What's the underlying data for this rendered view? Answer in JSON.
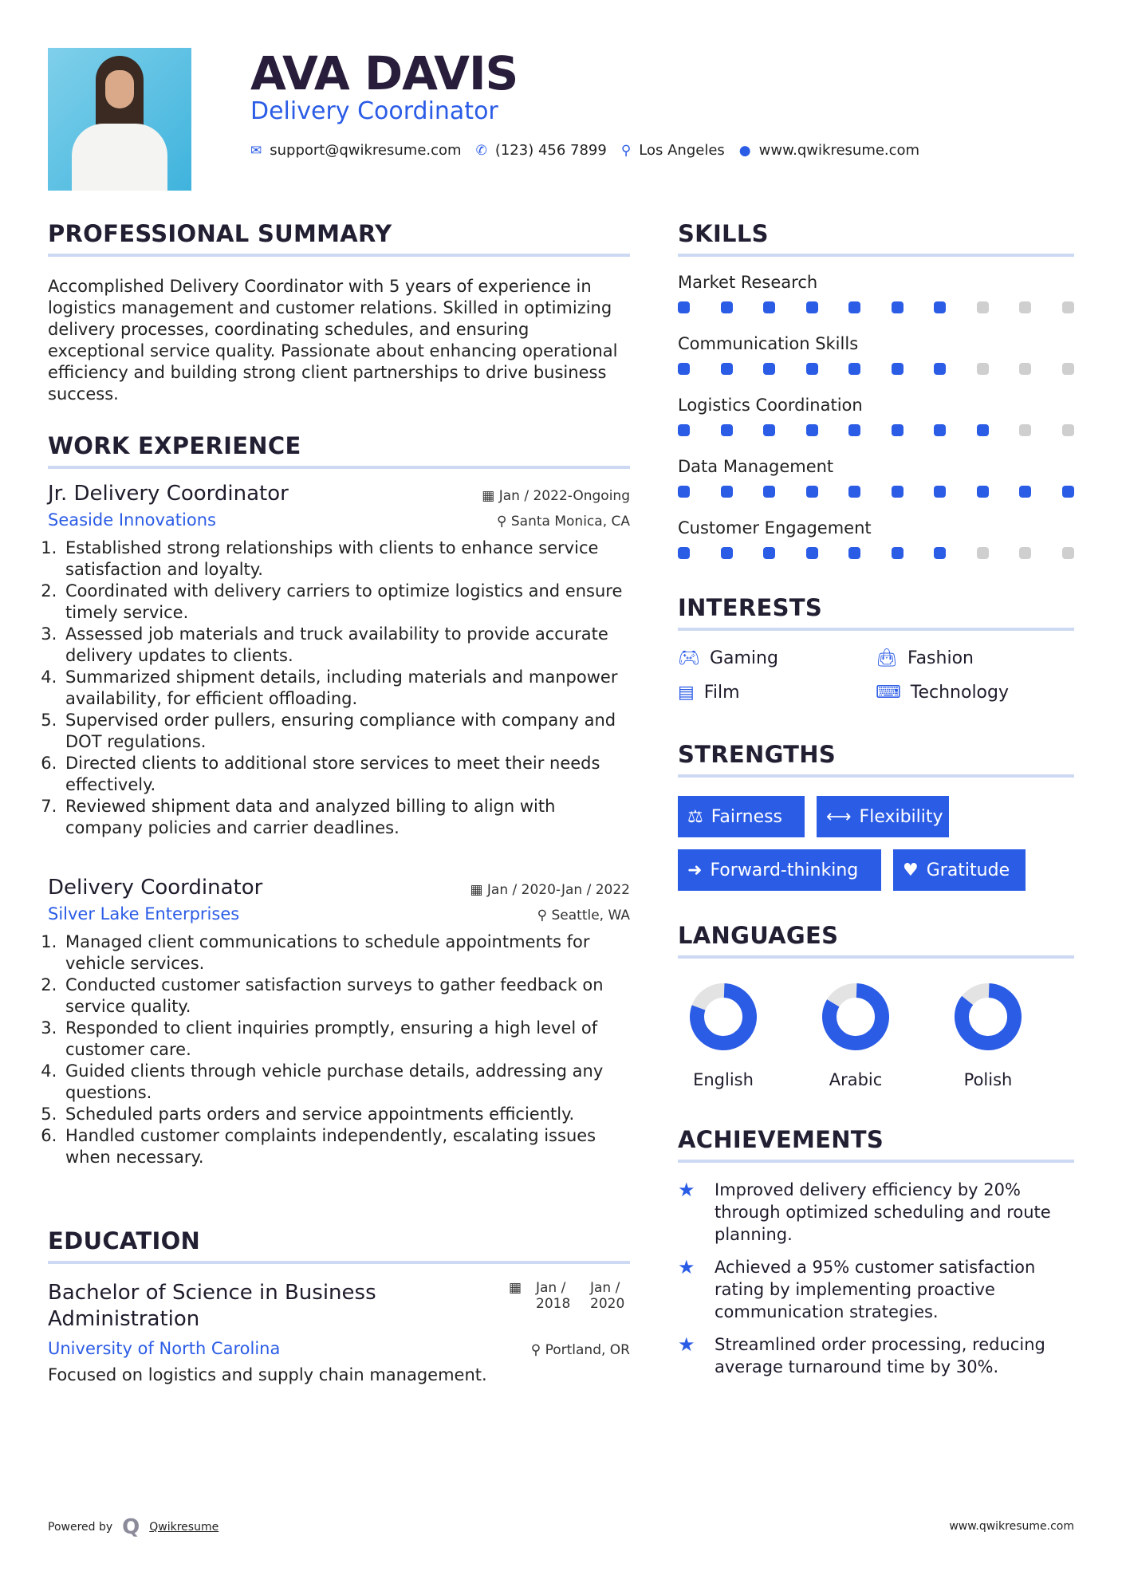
{
  "header": {
    "name": "AVA DAVIS",
    "title": "Delivery Coordinator",
    "contact": {
      "email": "support@qwikresume.com",
      "phone": "(123) 456 7899",
      "location": "Los Angeles",
      "website": "www.qwikresume.com"
    }
  },
  "summary": {
    "heading": "PROFESSIONAL SUMMARY",
    "text": "Accomplished Delivery Coordinator with 5 years of experience in logistics management and customer relations. Skilled in optimizing delivery processes, coordinating schedules, and ensuring exceptional service quality. Passionate about enhancing operational efficiency and building strong client partnerships to drive business success."
  },
  "work": {
    "heading": "WORK EXPERIENCE",
    "jobs": [
      {
        "title": "Jr. Delivery Coordinator",
        "company": "Seaside Innovations",
        "dates": "Jan / 2022-Ongoing",
        "location": "Santa Monica, CA",
        "items": [
          "Established strong relationships with clients to enhance service satisfaction and loyalty.",
          "Coordinated with delivery carriers to optimize logistics and ensure timely service.",
          "Assessed job materials and truck availability to provide accurate delivery updates to clients.",
          "Summarized shipment details, including materials and manpower availability, for efficient offloading.",
          "Supervised order pullers, ensuring compliance with company and DOT regulations.",
          "Directed clients to additional store services to meet their needs effectively.",
          "Reviewed shipment data and analyzed billing to align with company policies and carrier deadlines."
        ]
      },
      {
        "title": "Delivery Coordinator",
        "company": "Silver Lake Enterprises",
        "dates": "Jan / 2020-Jan / 2022",
        "location": "Seattle, WA",
        "items": [
          "Managed client communications to schedule appointments for vehicle services.",
          "Conducted customer satisfaction surveys to gather feedback on service quality.",
          "Responded to client inquiries promptly, ensuring a high level of customer care.",
          "Guided clients through vehicle purchase details, addressing any questions.",
          "Scheduled parts orders and service appointments efficiently.",
          "Handled customer complaints independently, escalating issues when necessary."
        ]
      }
    ]
  },
  "education": {
    "heading": "EDUCATION",
    "degree": "Bachelor of Science in Business Administration",
    "school": "University of North Carolina",
    "start": "Jan / 2018",
    "end": "Jan / 2020",
    "location": "Portland, OR",
    "description": "Focused on logistics and supply chain management."
  },
  "skills": {
    "heading": "SKILLS",
    "items": [
      {
        "name": "Market Research",
        "level": 7
      },
      {
        "name": "Communication Skills",
        "level": 7
      },
      {
        "name": "Logistics Coordination",
        "level": 8
      },
      {
        "name": "Data Management",
        "level": 10
      },
      {
        "name": "Customer Engagement",
        "level": 7
      }
    ],
    "max": 10
  },
  "interests": {
    "heading": "INTERESTS",
    "items": [
      {
        "label": "Gaming",
        "icon": "gamepad-icon"
      },
      {
        "label": "Fashion",
        "icon": "shopping-bag-icon"
      },
      {
        "label": "Film",
        "icon": "film-icon"
      },
      {
        "label": "Technology",
        "icon": "laptop-icon"
      }
    ]
  },
  "strengths": {
    "heading": "STRENGTHS",
    "items": [
      {
        "label": "Fairness",
        "icon": "balance-scale-icon"
      },
      {
        "label": "Flexibility",
        "icon": "arrows-horizontal-icon"
      },
      {
        "label": "Forward-thinking",
        "icon": "arrow-right-icon"
      },
      {
        "label": "Gratitude",
        "icon": "heart-icon"
      }
    ]
  },
  "languages": {
    "heading": "LANGUAGES",
    "items": [
      {
        "name": "English",
        "level": 80
      },
      {
        "name": "Arabic",
        "level": 83
      },
      {
        "name": "Polish",
        "level": 85
      }
    ]
  },
  "achievements": {
    "heading": "ACHIEVEMENTS",
    "items": [
      "Improved delivery efficiency by 20% through optimized scheduling and route planning.",
      "Achieved a 95% customer satisfaction rating by implementing proactive communication strategies.",
      "Streamlined order processing, reducing average turnaround time by 30%."
    ]
  },
  "footer": {
    "powered_by": "Powered by",
    "brand": "Qwikresume",
    "website": "www.qwikresume.com"
  },
  "colors": {
    "accent": "#2b5ce6",
    "name": "#281d3b",
    "rule": "#cdd9f3",
    "inactive": "#cfcfcf"
  }
}
